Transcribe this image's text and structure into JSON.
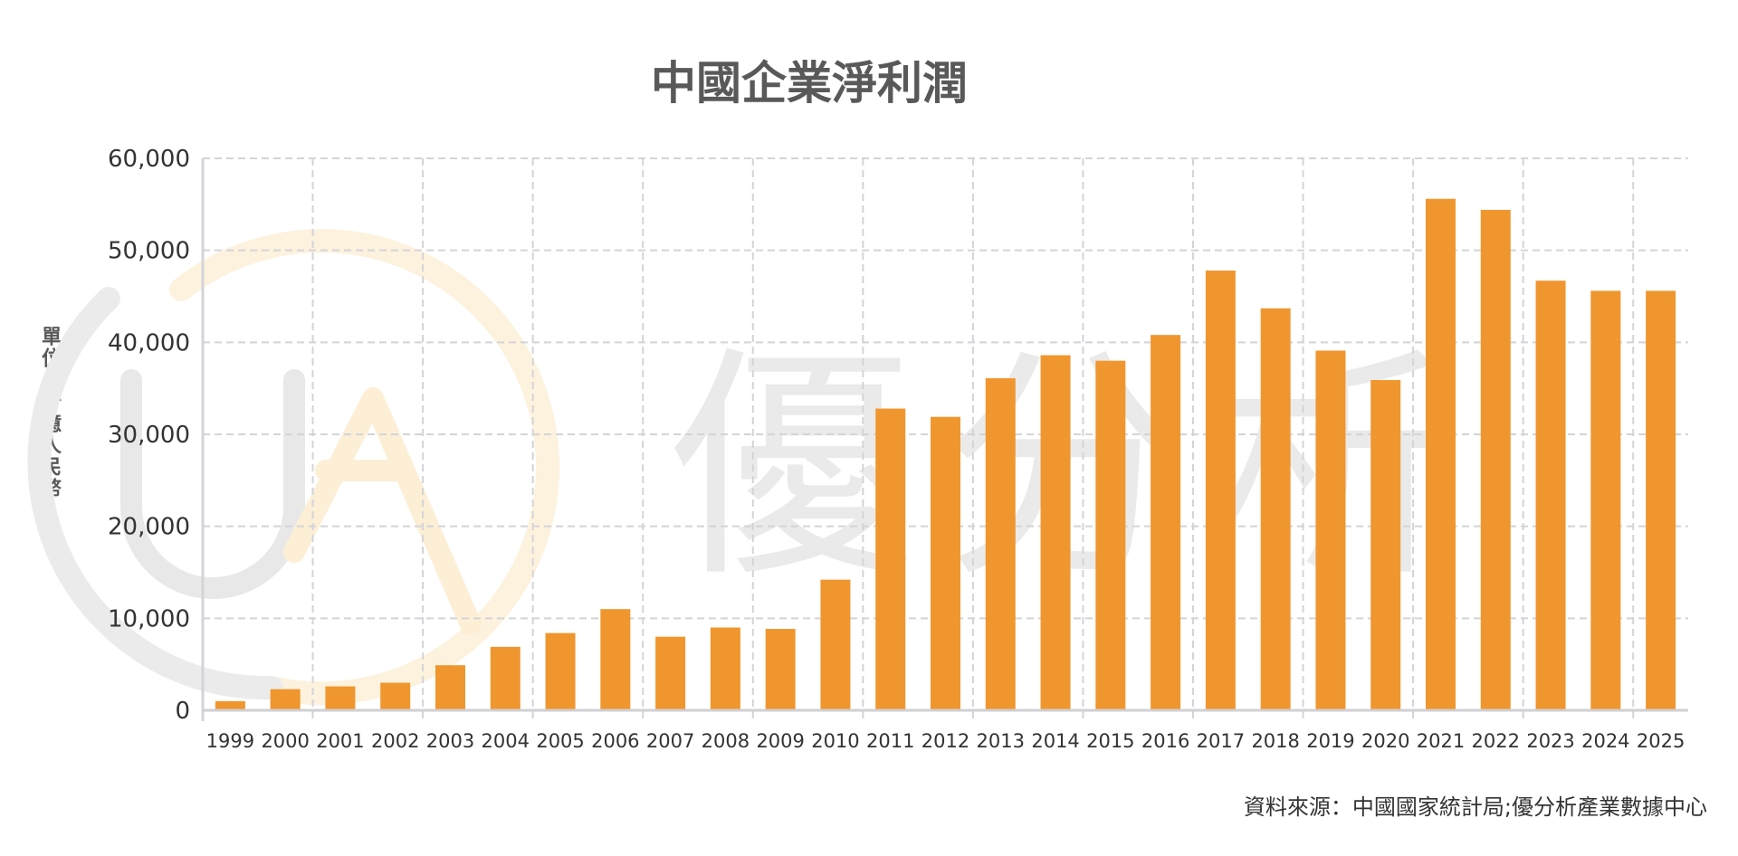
{
  "chart_data": {
    "type": "bar",
    "title": "中國企業淨利潤",
    "ylabel": "單位：十億人民幣",
    "xlabel": "",
    "ylim": [
      0,
      60000
    ],
    "yticks": [
      "0",
      "10,000",
      "20,000",
      "30,000",
      "40,000",
      "50,000",
      "60,000"
    ],
    "grid": true,
    "categories": [
      "1999",
      "2000",
      "2001",
      "2002",
      "2003",
      "2004",
      "2005",
      "2006",
      "2007",
      "2008",
      "2009",
      "2010",
      "2011",
      "2012",
      "2013",
      "2014",
      "2015",
      "2016",
      "2017",
      "2018",
      "2019",
      "2020",
      "2021",
      "2022",
      "2023",
      "2024",
      "2025"
    ],
    "values": [
      1000,
      2300,
      2600,
      3000,
      4900,
      6900,
      8400,
      11000,
      8000,
      9000,
      8850,
      14200,
      32800,
      31900,
      36100,
      38600,
      38000,
      40800,
      47800,
      43700,
      39100,
      35900,
      55600,
      54400,
      46700,
      45600,
      45600
    ],
    "bar_color": "#F0962E",
    "source": "資料來源：中國國家統計局;優分析產業數據中心"
  },
  "watermark": {
    "logo": "UA",
    "text": "優分析"
  }
}
